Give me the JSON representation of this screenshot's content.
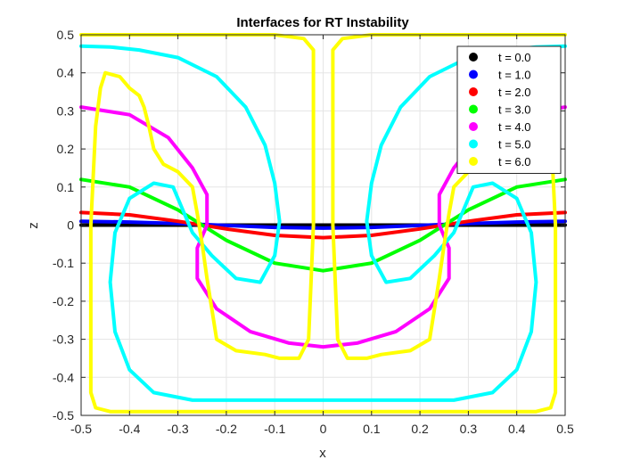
{
  "chart_data": {
    "type": "line",
    "title": "Interfaces for RT Instability",
    "xlabel": "x",
    "ylabel": "z",
    "xlim": [
      -0.5,
      0.5
    ],
    "ylim": [
      -0.5,
      0.5
    ],
    "xticks": [
      "-0.5",
      "-0.4",
      "-0.3",
      "-0.2",
      "-0.1",
      "0",
      "0.1",
      "0.2",
      "0.3",
      "0.4",
      "0.5"
    ],
    "yticks": [
      "0.5",
      "0.4",
      "0.3",
      "0.2",
      "0.1",
      "0",
      "-0.1",
      "-0.2",
      "-0.3",
      "-0.4",
      "-0.5"
    ],
    "grid": true,
    "legend_position": "top-right",
    "series": [
      {
        "name": "t = 0.0",
        "color": "#000000",
        "curves": [
          [
            [
              -0.5,
              0.0
            ],
            [
              0.5,
              0.0
            ]
          ]
        ]
      },
      {
        "name": "t = 1.0",
        "color": "#0000ff",
        "curves": [
          [
            [
              -0.5,
              0.01
            ],
            [
              -0.4,
              0.008
            ],
            [
              -0.3,
              0.004
            ],
            [
              -0.2,
              -0.001
            ],
            [
              -0.1,
              -0.006
            ],
            [
              0.0,
              -0.008
            ],
            [
              0.1,
              -0.006
            ],
            [
              0.2,
              -0.001
            ],
            [
              0.3,
              0.004
            ],
            [
              0.4,
              0.008
            ],
            [
              0.5,
              0.01
            ]
          ]
        ]
      },
      {
        "name": "t = 2.0",
        "color": "#ff0000",
        "curves": [
          [
            [
              -0.5,
              0.033
            ],
            [
              -0.4,
              0.027
            ],
            [
              -0.3,
              0.01
            ],
            [
              -0.2,
              -0.01
            ],
            [
              -0.1,
              -0.027
            ],
            [
              0.0,
              -0.033
            ],
            [
              0.1,
              -0.027
            ],
            [
              0.2,
              -0.01
            ],
            [
              0.3,
              0.01
            ],
            [
              0.4,
              0.027
            ],
            [
              0.5,
              0.033
            ]
          ]
        ]
      },
      {
        "name": "t = 3.0",
        "color": "#00ff00",
        "curves": [
          [
            [
              -0.5,
              0.12
            ],
            [
              -0.4,
              0.1
            ],
            [
              -0.3,
              0.04
            ],
            [
              -0.2,
              -0.04
            ],
            [
              -0.1,
              -0.1
            ],
            [
              0.0,
              -0.12
            ],
            [
              0.1,
              -0.1
            ],
            [
              0.2,
              -0.04
            ],
            [
              0.3,
              0.04
            ],
            [
              0.4,
              0.1
            ],
            [
              0.5,
              0.12
            ]
          ]
        ]
      },
      {
        "name": "t = 4.0",
        "color": "#ff00ff",
        "curves": [
          [
            [
              -0.5,
              0.31
            ],
            [
              -0.4,
              0.29
            ],
            [
              -0.32,
              0.23
            ],
            [
              -0.27,
              0.15
            ],
            [
              -0.24,
              0.08
            ],
            [
              -0.24,
              0.0
            ],
            [
              -0.26,
              -0.06
            ],
            [
              -0.26,
              -0.14
            ],
            [
              -0.22,
              -0.22
            ],
            [
              -0.15,
              -0.28
            ],
            [
              -0.07,
              -0.31
            ],
            [
              0.0,
              -0.32
            ],
            [
              0.07,
              -0.31
            ],
            [
              0.15,
              -0.28
            ],
            [
              0.22,
              -0.22
            ],
            [
              0.26,
              -0.14
            ],
            [
              0.26,
              -0.06
            ],
            [
              0.24,
              0.0
            ],
            [
              0.24,
              0.08
            ],
            [
              0.27,
              0.15
            ],
            [
              0.32,
              0.23
            ],
            [
              0.4,
              0.29
            ],
            [
              0.5,
              0.31
            ]
          ]
        ]
      },
      {
        "name": "t = 5.0",
        "color": "#00ffff",
        "curves": [
          [
            [
              -0.5,
              0.47
            ],
            [
              -0.44,
              0.468
            ],
            [
              -0.38,
              0.46
            ],
            [
              -0.3,
              0.44
            ],
            [
              -0.22,
              0.39
            ],
            [
              -0.16,
              0.31
            ],
            [
              -0.12,
              0.21
            ],
            [
              -0.1,
              0.11
            ],
            [
              -0.09,
              0.01
            ],
            [
              -0.1,
              -0.08
            ],
            [
              -0.13,
              -0.15
            ],
            [
              -0.18,
              -0.14
            ],
            [
              -0.23,
              -0.08
            ],
            [
              -0.27,
              -0.02
            ],
            [
              -0.29,
              0.04
            ],
            [
              -0.31,
              0.1
            ],
            [
              -0.35,
              0.11
            ],
            [
              -0.4,
              0.07
            ],
            [
              -0.43,
              -0.02
            ],
            [
              -0.44,
              -0.15
            ],
            [
              -0.43,
              -0.28
            ],
            [
              -0.4,
              -0.38
            ],
            [
              -0.35,
              -0.44
            ],
            [
              -0.27,
              -0.46
            ],
            [
              0.0,
              -0.46
            ],
            [
              0.27,
              -0.46
            ],
            [
              0.35,
              -0.44
            ],
            [
              0.4,
              -0.38
            ],
            [
              0.43,
              -0.28
            ],
            [
              0.44,
              -0.15
            ],
            [
              0.43,
              -0.02
            ],
            [
              0.4,
              0.07
            ],
            [
              0.35,
              0.11
            ],
            [
              0.31,
              0.1
            ],
            [
              0.29,
              0.04
            ],
            [
              0.27,
              -0.02
            ],
            [
              0.23,
              -0.08
            ],
            [
              0.18,
              -0.14
            ],
            [
              0.13,
              -0.15
            ],
            [
              0.1,
              -0.08
            ],
            [
              0.09,
              0.01
            ],
            [
              0.1,
              0.11
            ],
            [
              0.12,
              0.21
            ],
            [
              0.16,
              0.31
            ],
            [
              0.22,
              0.39
            ],
            [
              0.3,
              0.44
            ],
            [
              0.38,
              0.46
            ],
            [
              0.44,
              0.468
            ],
            [
              0.5,
              0.47
            ]
          ]
        ]
      },
      {
        "name": "t = 6.0",
        "color": "#ffff00",
        "curves": [
          [
            [
              -0.5,
              0.5
            ],
            [
              -0.3,
              0.5
            ],
            [
              -0.1,
              0.5
            ],
            [
              -0.04,
              0.49
            ],
            [
              -0.02,
              0.46
            ],
            [
              -0.02,
              0.0
            ],
            [
              -0.03,
              -0.3
            ],
            [
              -0.05,
              -0.35
            ],
            [
              -0.09,
              -0.35
            ],
            [
              -0.12,
              -0.34
            ],
            [
              -0.18,
              -0.33
            ],
            [
              -0.22,
              -0.3
            ],
            [
              -0.23,
              -0.22
            ],
            [
              -0.24,
              -0.14
            ],
            [
              -0.25,
              -0.05
            ],
            [
              -0.26,
              0.03
            ],
            [
              -0.27,
              0.1
            ],
            [
              -0.3,
              0.14
            ],
            [
              -0.33,
              0.16
            ],
            [
              -0.35,
              0.2
            ],
            [
              -0.36,
              0.26
            ],
            [
              -0.37,
              0.31
            ],
            [
              -0.38,
              0.34
            ],
            [
              -0.4,
              0.36
            ],
            [
              -0.42,
              0.39
            ],
            [
              -0.45,
              0.4
            ],
            [
              -0.46,
              0.36
            ],
            [
              -0.47,
              0.26
            ],
            [
              -0.48,
              0.0
            ],
            [
              -0.48,
              -0.3
            ],
            [
              -0.48,
              -0.44
            ],
            [
              -0.47,
              -0.48
            ],
            [
              -0.44,
              -0.49
            ],
            [
              0.0,
              -0.49
            ],
            [
              0.44,
              -0.49
            ],
            [
              0.47,
              -0.48
            ],
            [
              0.48,
              -0.44
            ],
            [
              0.48,
              -0.3
            ],
            [
              0.48,
              0.0
            ],
            [
              0.47,
              0.26
            ],
            [
              0.46,
              0.36
            ],
            [
              0.45,
              0.4
            ],
            [
              0.42,
              0.39
            ],
            [
              0.4,
              0.36
            ],
            [
              0.38,
              0.34
            ],
            [
              0.37,
              0.31
            ],
            [
              0.36,
              0.26
            ],
            [
              0.35,
              0.2
            ],
            [
              0.33,
              0.16
            ],
            [
              0.3,
              0.14
            ],
            [
              0.27,
              0.1
            ],
            [
              0.26,
              0.03
            ],
            [
              0.25,
              -0.05
            ],
            [
              0.24,
              -0.14
            ],
            [
              0.23,
              -0.22
            ],
            [
              0.22,
              -0.3
            ],
            [
              0.18,
              -0.33
            ],
            [
              0.12,
              -0.34
            ],
            [
              0.09,
              -0.35
            ],
            [
              0.05,
              -0.35
            ],
            [
              0.03,
              -0.3
            ],
            [
              0.02,
              0.0
            ],
            [
              0.02,
              0.46
            ],
            [
              0.04,
              0.49
            ],
            [
              0.1,
              0.5
            ],
            [
              0.3,
              0.5
            ],
            [
              0.5,
              0.5
            ]
          ]
        ]
      }
    ]
  }
}
